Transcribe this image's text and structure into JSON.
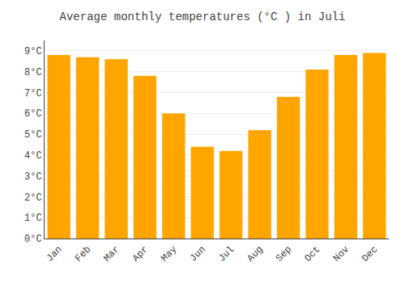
{
  "chart_data": {
    "type": "bar",
    "title": "Average monthly temperatures (°C ) in Juli",
    "categories": [
      "Jan",
      "Feb",
      "Mar",
      "Apr",
      "May",
      "Jun",
      "Jul",
      "Aug",
      "Sep",
      "Oct",
      "Nov",
      "Dec"
    ],
    "values": [
      8.8,
      8.7,
      8.6,
      7.8,
      6.0,
      4.4,
      4.2,
      5.2,
      6.8,
      8.1,
      8.8,
      8.9
    ],
    "color": "#FFA500",
    "ylim": [
      0,
      9.5
    ],
    "yticks": [
      {
        "value": 0,
        "label": "0°C"
      },
      {
        "value": 1,
        "label": "1°C"
      },
      {
        "value": 2,
        "label": "2°C"
      },
      {
        "value": 3,
        "label": "3°C"
      },
      {
        "value": 4,
        "label": "4°C"
      },
      {
        "value": 5,
        "label": "5°C"
      },
      {
        "value": 6,
        "label": "6°C"
      },
      {
        "value": 7,
        "label": "7°C"
      },
      {
        "value": 8,
        "label": "8°C"
      },
      {
        "value": 9,
        "label": "9°C"
      }
    ],
    "grid": true
  }
}
